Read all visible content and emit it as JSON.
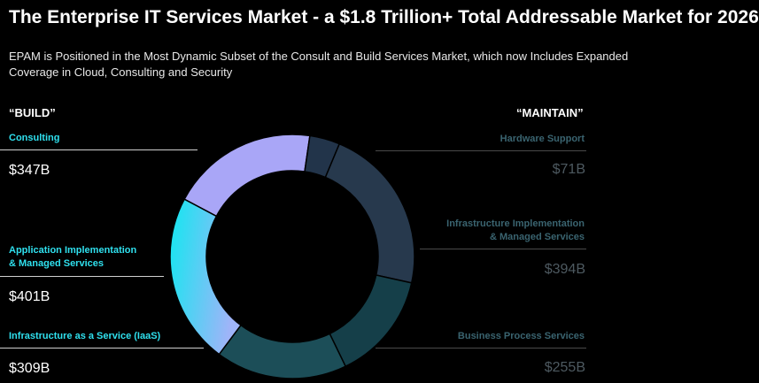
{
  "header": {
    "title": "The Enterprise IT Services Market - a $1.8 Trillion+ Total Addressable Market for 2026",
    "subtitle": "EPAM is Positioned in the Most Dynamic Subset of the Consult and Build Services Market, which now Includes Expanded Coverage in Cloud, Consulting and Security"
  },
  "columns": {
    "build": "“BUILD”",
    "maintain": "“MAINTAIN”"
  },
  "chart_data": {
    "type": "pie",
    "variant": "donut",
    "title": "The Enterprise IT Services Market - a $1.8 Trillion+ Total Addressable Market for 2026",
    "unit": "$B",
    "segments": [
      {
        "name": "Consulting",
        "value": 347,
        "label": "$347B",
        "group": "build",
        "color": "#a9a6f7"
      },
      {
        "name": "Hardware Support",
        "value": 71,
        "label": "$71B",
        "group": "maintain",
        "color": "#22344a"
      },
      {
        "name": "Infrastructure Implementation & Managed Services",
        "value": 394,
        "label": "$394B",
        "group": "maintain",
        "color": "#27394d"
      },
      {
        "name": "Business Process Services",
        "value": 255,
        "label": "$255B",
        "group": "maintain",
        "color": "#153f49"
      },
      {
        "name": "Infrastructure as a Service (IaaS)",
        "value": 309,
        "label": "$309B",
        "group": "build",
        "color": "#1c4e58"
      },
      {
        "name": "Application Implementation & Managed Services",
        "value": 401,
        "label": "$401B",
        "group": "build",
        "color": "#45d8f7"
      }
    ]
  },
  "labels": {
    "consulting": {
      "name": "Consulting",
      "value": "$347B"
    },
    "app_impl": {
      "line1": "Application Implementation",
      "line2": "& Managed Services",
      "value": "$401B"
    },
    "iaas": {
      "name": "Infrastructure as a Service (IaaS)",
      "value": "$309B"
    },
    "hardware": {
      "name": "Hardware Support",
      "value": "$71B"
    },
    "infra_impl": {
      "line1": "Infrastructure Implementation",
      "line2": "& Managed Services",
      "value": "$394B"
    },
    "bps": {
      "name": "Business Process Services",
      "value": "$255B"
    }
  }
}
